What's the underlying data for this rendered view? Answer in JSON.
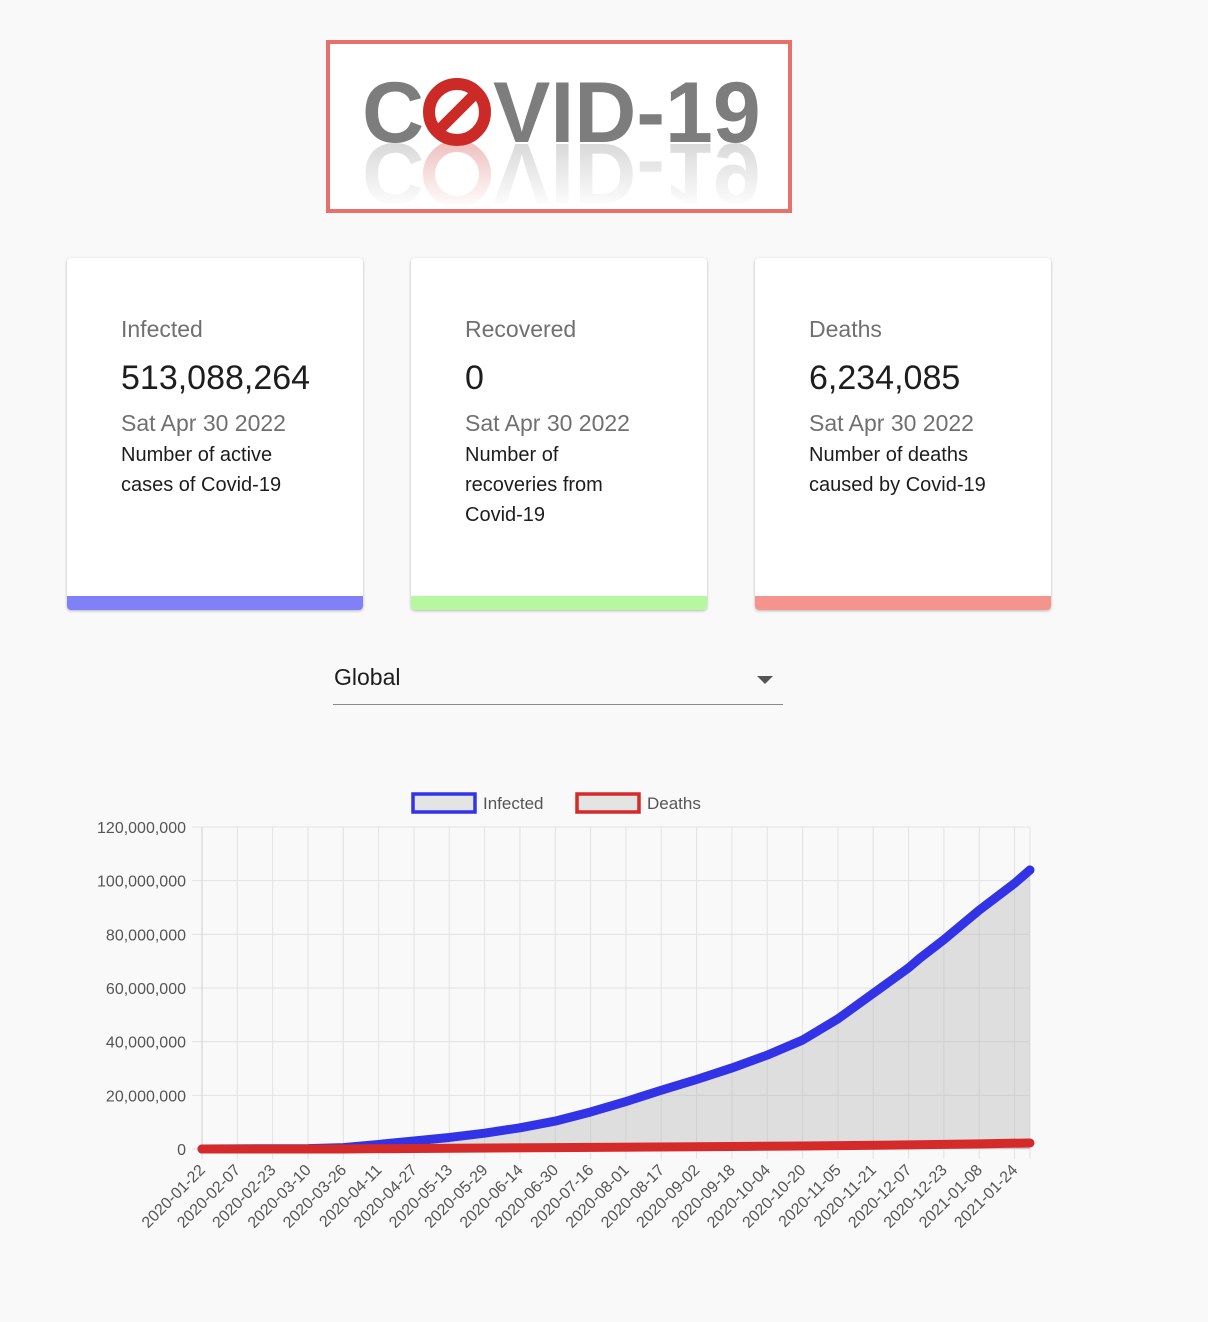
{
  "logo": {
    "text": "COVID-19",
    "colors": {
      "text": "#7d7d7d",
      "stop_sign": "#cc2a27",
      "border": "#e8706a"
    }
  },
  "cards": [
    {
      "title": "Infected",
      "value": "513,088,264",
      "date": "Sat Apr 30 2022",
      "description": "Number of active cases of Covid-19",
      "bar_color": "#8080f8"
    },
    {
      "title": "Recovered",
      "value": "0",
      "date": "Sat Apr 30 2022",
      "description": "Number of recoveries from Covid-19",
      "bar_color": "#b6f7a0"
    },
    {
      "title": "Deaths",
      "value": "6,234,085",
      "date": "Sat Apr 30 2022",
      "description": "Number of deaths caused by Covid-19",
      "bar_color": "#f4948d"
    }
  ],
  "country_select": {
    "value": "Global"
  },
  "chart_data": {
    "type": "line",
    "legend_position": "top",
    "grid": true,
    "ylim": [
      0,
      120000000
    ],
    "y_ticks": [
      "0",
      "20,000,000",
      "40,000,000",
      "60,000,000",
      "80,000,000",
      "100,000,000",
      "120,000,000"
    ],
    "x_ticks": [
      "2020-01-22",
      "2020-02-07",
      "2020-02-23",
      "2020-03-10",
      "2020-03-26",
      "2020-04-11",
      "2020-04-27",
      "2020-05-13",
      "2020-05-29",
      "2020-06-14",
      "2020-06-30",
      "2020-07-16",
      "2020-08-01",
      "2020-08-17",
      "2020-09-02",
      "2020-09-18",
      "2020-10-04",
      "2020-10-20",
      "2020-11-05",
      "2020-11-21",
      "2020-12-07",
      "2020-12-23",
      "2021-01-08",
      "2021-01-24"
    ],
    "x_last": "2021-01-31",
    "series": [
      {
        "name": "Infected",
        "color": "#3232e6",
        "fill": "rgba(180,180,180,0.38)",
        "points": [
          [
            "2020-01-22",
            0
          ],
          [
            "2020-02-23",
            100000
          ],
          [
            "2020-03-10",
            150000
          ],
          [
            "2020-03-26",
            500000
          ],
          [
            "2020-04-11",
            1700000
          ],
          [
            "2020-04-27",
            3000000
          ],
          [
            "2020-05-13",
            4300000
          ],
          [
            "2020-05-29",
            5900000
          ],
          [
            "2020-06-14",
            7900000
          ],
          [
            "2020-06-30",
            10400000
          ],
          [
            "2020-07-16",
            13800000
          ],
          [
            "2020-08-01",
            17700000
          ],
          [
            "2020-08-17",
            21900000
          ],
          [
            "2020-09-02",
            25900000
          ],
          [
            "2020-09-18",
            30200000
          ],
          [
            "2020-10-04",
            35000000
          ],
          [
            "2020-10-20",
            40600000
          ],
          [
            "2020-11-05",
            48500000
          ],
          [
            "2020-11-21",
            58000000
          ],
          [
            "2020-12-07",
            67500000
          ],
          [
            "2020-12-12",
            71000000
          ],
          [
            "2020-12-23",
            78000000
          ],
          [
            "2021-01-08",
            89000000
          ],
          [
            "2021-01-24",
            99000000
          ],
          [
            "2021-01-31",
            104000000
          ]
        ]
      },
      {
        "name": "Deaths",
        "color": "#d42a2a",
        "fill": "rgba(180,180,180,0.38)",
        "points": [
          [
            "2020-01-22",
            0
          ],
          [
            "2020-03-26",
            20000
          ],
          [
            "2020-04-27",
            200000
          ],
          [
            "2020-06-30",
            510000
          ],
          [
            "2020-09-02",
            860000
          ],
          [
            "2020-10-20",
            1120000
          ],
          [
            "2020-12-07",
            1540000
          ],
          [
            "2021-01-08",
            1930000
          ],
          [
            "2021-01-31",
            2250000
          ]
        ]
      }
    ]
  }
}
